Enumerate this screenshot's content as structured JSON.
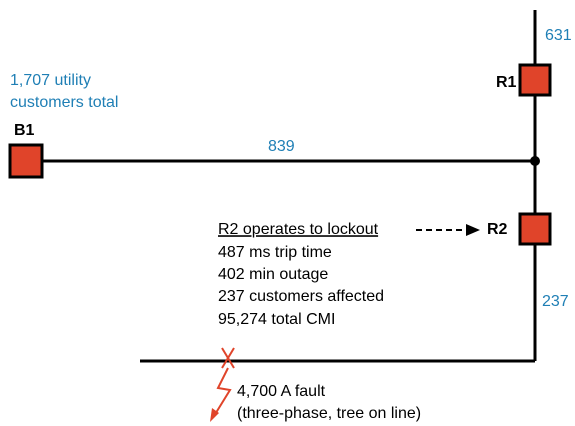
{
  "nodes": [
    {
      "label": "B1"
    },
    {
      "label": "R1"
    },
    {
      "label": "R2"
    }
  ],
  "segments": [
    {
      "label": "631"
    },
    {
      "label": "839"
    },
    {
      "label": "237"
    }
  ],
  "source_note": [
    "1,707 utility",
    "customers total"
  ],
  "event": {
    "heading": "R2 operates to lockout",
    "lines": [
      "487 ms trip time",
      "402 min outage",
      "237 customers affected",
      "95,274 total CMI"
    ]
  },
  "fault": [
    "4,700 A fault",
    "(three-phase, tree on line)"
  ]
}
